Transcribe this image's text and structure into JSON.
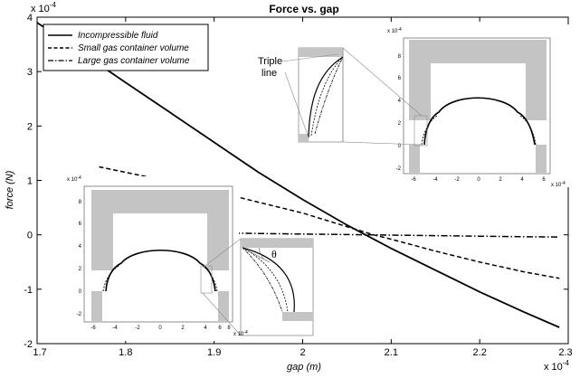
{
  "chart_data": {
    "type": "line",
    "title": "Force vs. gap",
    "xlabel": "gap (m)",
    "ylabel": "force (N)",
    "x_exponent": "x 10",
    "x_exponent_power": "-4",
    "y_exponent": "x 10",
    "y_exponent_power": "-4",
    "xlim": [
      1.7,
      2.3
    ],
    "ylim": [
      -2,
      4
    ],
    "x_ticks": [
      "1.7",
      "1.8",
      "1.9",
      "2",
      "2.1",
      "2.2",
      "2.3"
    ],
    "y_ticks": [
      "-2",
      "-1",
      "0",
      "1",
      "2",
      "3",
      "4"
    ],
    "legend_position": "top-left",
    "series": [
      {
        "name": "Incompressible fluid",
        "style": "solid",
        "x": [
          1.7,
          1.75,
          1.8,
          1.85,
          1.9,
          1.95,
          2.0,
          2.05,
          2.1,
          2.15,
          2.2,
          2.25,
          2.29
        ],
        "y": [
          3.9,
          3.35,
          2.8,
          2.25,
          1.7,
          1.15,
          0.65,
          0.18,
          -0.25,
          -0.65,
          -1.05,
          -1.42,
          -1.7
        ]
      },
      {
        "name": "Small gas container volume",
        "style": "dashed",
        "x": [
          1.77,
          1.85,
          1.9,
          1.95,
          2.0,
          2.05,
          2.08,
          2.1,
          2.15,
          2.2,
          2.25,
          2.29
        ],
        "y": [
          1.25,
          0.98,
          0.8,
          0.6,
          0.4,
          0.15,
          0.0,
          -0.08,
          -0.3,
          -0.5,
          -0.68,
          -0.8
        ]
      },
      {
        "name": "Large gas container volume",
        "style": "dash-dot",
        "x": [
          1.77,
          1.85,
          1.9,
          1.95,
          2.0,
          2.05,
          2.08,
          2.1,
          2.15,
          2.2,
          2.25,
          2.29
        ],
        "y": [
          0.06,
          0.045,
          0.035,
          0.025,
          0.015,
          0.005,
          0.0,
          -0.005,
          -0.015,
          -0.025,
          -0.035,
          -0.04
        ]
      }
    ],
    "annotations": {
      "triple_line_1": "Triple",
      "triple_line_2": "line",
      "theta": "θ"
    },
    "insets": {
      "inset_scale": "x 10",
      "inset_scale_power": "-4",
      "top_right_y_ticks": [
        "8",
        "6",
        "4",
        "2",
        "0",
        "-2"
      ],
      "top_right_x_ticks": [
        "-6",
        "-4",
        "-2",
        "0",
        "2",
        "4",
        "6"
      ],
      "bottom_left_y_ticks": [
        "8",
        "6",
        "4",
        "2",
        "0",
        "-2"
      ],
      "bottom_left_x_ticks": [
        "-6",
        "-4",
        "-2",
        "0",
        "2",
        "4",
        "6",
        "8"
      ]
    }
  }
}
